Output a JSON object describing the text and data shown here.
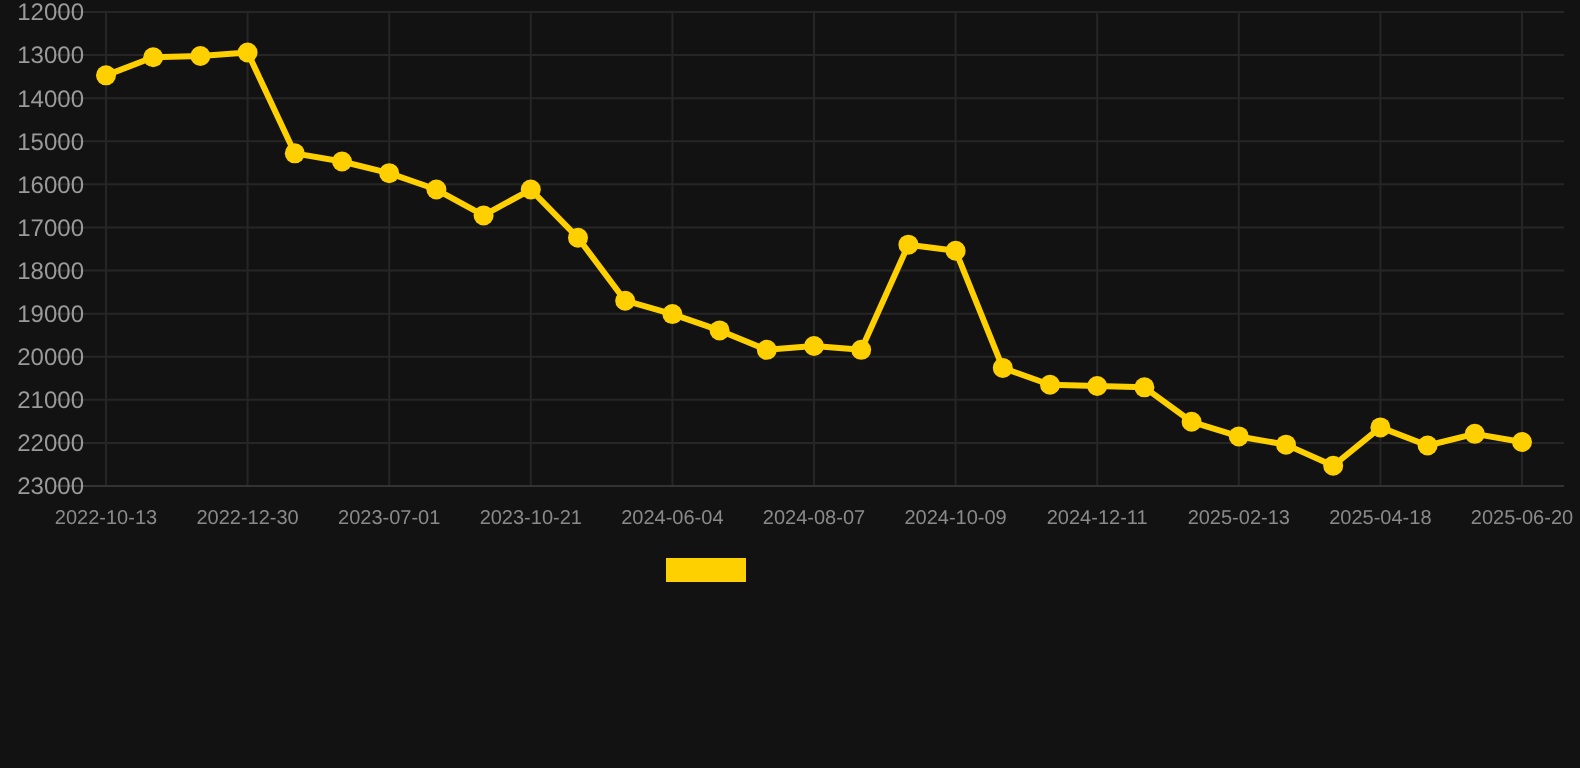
{
  "chart_data": {
    "type": "line",
    "categories": [
      "2022-10-13",
      null,
      null,
      "2022-12-30",
      null,
      null,
      "2023-07-01",
      null,
      null,
      "2023-10-21",
      null,
      null,
      "2024-06-04",
      null,
      null,
      "2024-08-07",
      null,
      null,
      "2024-10-09",
      null,
      null,
      "2024-12-11",
      null,
      null,
      "2025-02-13",
      null,
      null,
      "2025-04-18",
      null,
      null,
      "2025-06-20"
    ],
    "series": [
      {
        "color": "#ffd000",
        "values": [
          13470,
          13050,
          13020,
          12940,
          15280,
          15470,
          15740,
          16120,
          16720,
          16120,
          17240,
          18700,
          19010,
          19390,
          19840,
          19750,
          19840,
          17400,
          17540,
          20260,
          20650,
          20680,
          20710,
          21510,
          21850,
          22040,
          22530,
          21640,
          22060,
          21790,
          21980
        ]
      }
    ],
    "ylim": [
      23000,
      12000
    ],
    "yticks": [
      12000,
      13000,
      14000,
      15000,
      16000,
      17000,
      18000,
      19000,
      20000,
      21000,
      22000,
      23000
    ],
    "grid": true,
    "marker": "circle",
    "line_style": "solid"
  }
}
